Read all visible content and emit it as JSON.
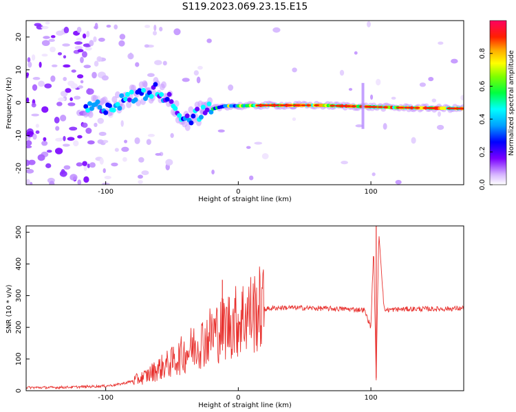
{
  "title": "S119.2023.069.23.15.E15",
  "chart_data": [
    {
      "type": "heatmap",
      "xlabel": "Height of straight line (km)",
      "ylabel": "Frequency (Hz)",
      "xlim": [
        -160,
        170
      ],
      "ylim": [
        -25,
        25
      ],
      "x_ticks": [
        "-100",
        "0",
        "100"
      ],
      "y_ticks": [
        "-20",
        "-10",
        "0",
        "10",
        "20"
      ],
      "ridge": [
        {
          "x": -110,
          "y": -1.5
        },
        {
          "x": -95,
          "y": -1
        },
        {
          "x": -85,
          "y": 1
        },
        {
          "x": -70,
          "y": 3
        },
        {
          "x": -60,
          "y": 4
        },
        {
          "x": -50,
          "y": 0
        },
        {
          "x": -40,
          "y": -5
        },
        {
          "x": -30,
          "y": -3.5
        },
        {
          "x": -20,
          "y": -2
        },
        {
          "x": -10,
          "y": -1
        },
        {
          "x": 0,
          "y": -1
        },
        {
          "x": 20,
          "y": -0.8
        },
        {
          "x": 60,
          "y": -0.8
        },
        {
          "x": 95,
          "y": -1.2
        },
        {
          "x": 120,
          "y": -1.5
        },
        {
          "x": 170,
          "y": -1.8
        }
      ],
      "colorbar": {
        "label": "Normalized spectral amplitude",
        "ticks": [
          "0.0",
          "0.2",
          "0.4",
          "0.6",
          "0.8"
        ],
        "range": [
          0,
          1
        ]
      }
    },
    {
      "type": "line",
      "xlabel": "Height of straight line (km)",
      "ylabel": "SNR (10 * v/v)",
      "xlim": [
        -160,
        170
      ],
      "ylim": [
        0,
        520
      ],
      "x_ticks": [
        "-100",
        "0",
        "100"
      ],
      "y_ticks": [
        "0",
        "100",
        "200",
        "300",
        "400",
        "500"
      ],
      "color": "#e8312e",
      "series": [
        {
          "x": [
            -160,
            -140,
            -120,
            -100,
            -90,
            -80,
            -70,
            -60,
            -50,
            -40,
            -30,
            -25,
            -20,
            -15,
            -10,
            -5,
            0,
            5,
            10,
            15,
            20,
            30,
            40,
            60,
            80,
            95,
            100,
            102,
            104,
            106,
            110,
            130,
            150,
            170
          ],
          "y": [
            10,
            10,
            12,
            15,
            20,
            30,
            45,
            70,
            90,
            120,
            150,
            160,
            180,
            190,
            200,
            215,
            220,
            240,
            245,
            255,
            258,
            262,
            262,
            260,
            258,
            255,
            200,
            450,
            40,
            500,
            255,
            258,
            258,
            260
          ]
        }
      ],
      "spikes": [
        {
          "x": -12,
          "y": 350
        },
        {
          "x": 102,
          "y": 450
        },
        {
          "x": 104,
          "y": 520
        }
      ]
    }
  ]
}
